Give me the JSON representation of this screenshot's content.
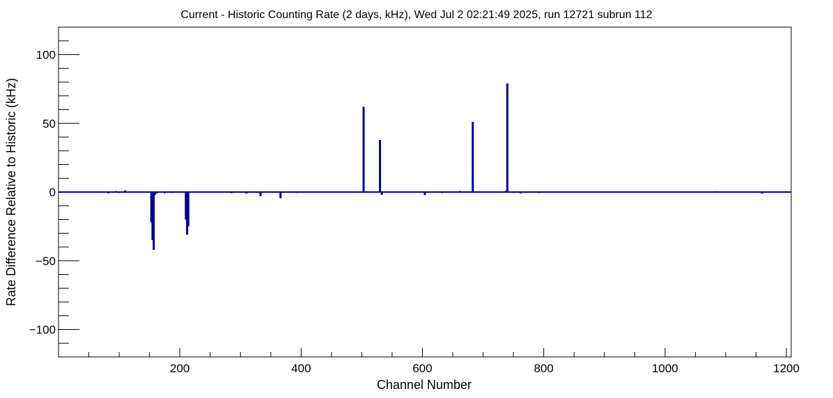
{
  "chart_data": {
    "type": "line",
    "title": "Current - Historic Counting Rate (2 days, kHz), Wed Jul  2 02:21:49 2025, run 12721 subrun 112",
    "xlabel": "Channel Number",
    "ylabel": "Rate Difference Relative to Historic (kHz)",
    "xlim": [
      0,
      1208
    ],
    "ylim": [
      -120,
      120
    ],
    "x_ticks": [
      200,
      400,
      600,
      800,
      1000,
      1200
    ],
    "y_ticks": [
      -100,
      -50,
      0,
      50,
      100
    ],
    "x_tick_labels": [
      "200",
      "400",
      "600",
      "800",
      "1000",
      "1200"
    ],
    "y_tick_labels": [
      "−100",
      "−50",
      "0",
      "50",
      "100"
    ],
    "grid": false,
    "legend": "none",
    "line_color": "#00008b",
    "series": [
      {
        "x": [
          82,
          95,
          100,
          110,
          113,
          125,
          150,
          153,
          155,
          157,
          159,
          162,
          175,
          188,
          205,
          210,
          212,
          214,
          216,
          225,
          248,
          258,
          285,
          310,
          333,
          366,
          392,
          418,
          450,
          475,
          503,
          530,
          533,
          580,
          604,
          632,
          662,
          683,
          737,
          740,
          750,
          762,
          793,
          835,
          878,
          915,
          955,
          1000,
          1018,
          1068,
          1084,
          1105,
          1160,
          1200
        ],
        "y": [
          -1,
          0.7,
          -0.6,
          1.2,
          -0.5,
          -0.4,
          0,
          -22,
          -35,
          -42,
          -2,
          -1,
          -1,
          -0.6,
          0,
          -20,
          -31,
          -25,
          0,
          0,
          0,
          0,
          -0.8,
          -1.1,
          -3,
          -4.5,
          -0.6,
          0,
          0,
          0,
          62,
          38,
          -2,
          -0.5,
          -2.2,
          -0.7,
          0.8,
          51,
          0.8,
          79,
          -0.6,
          -1,
          -0.7,
          -0.2,
          0,
          0,
          0,
          0,
          0,
          -0.5,
          0.6,
          0,
          -1.2,
          0
        ]
      }
    ]
  }
}
